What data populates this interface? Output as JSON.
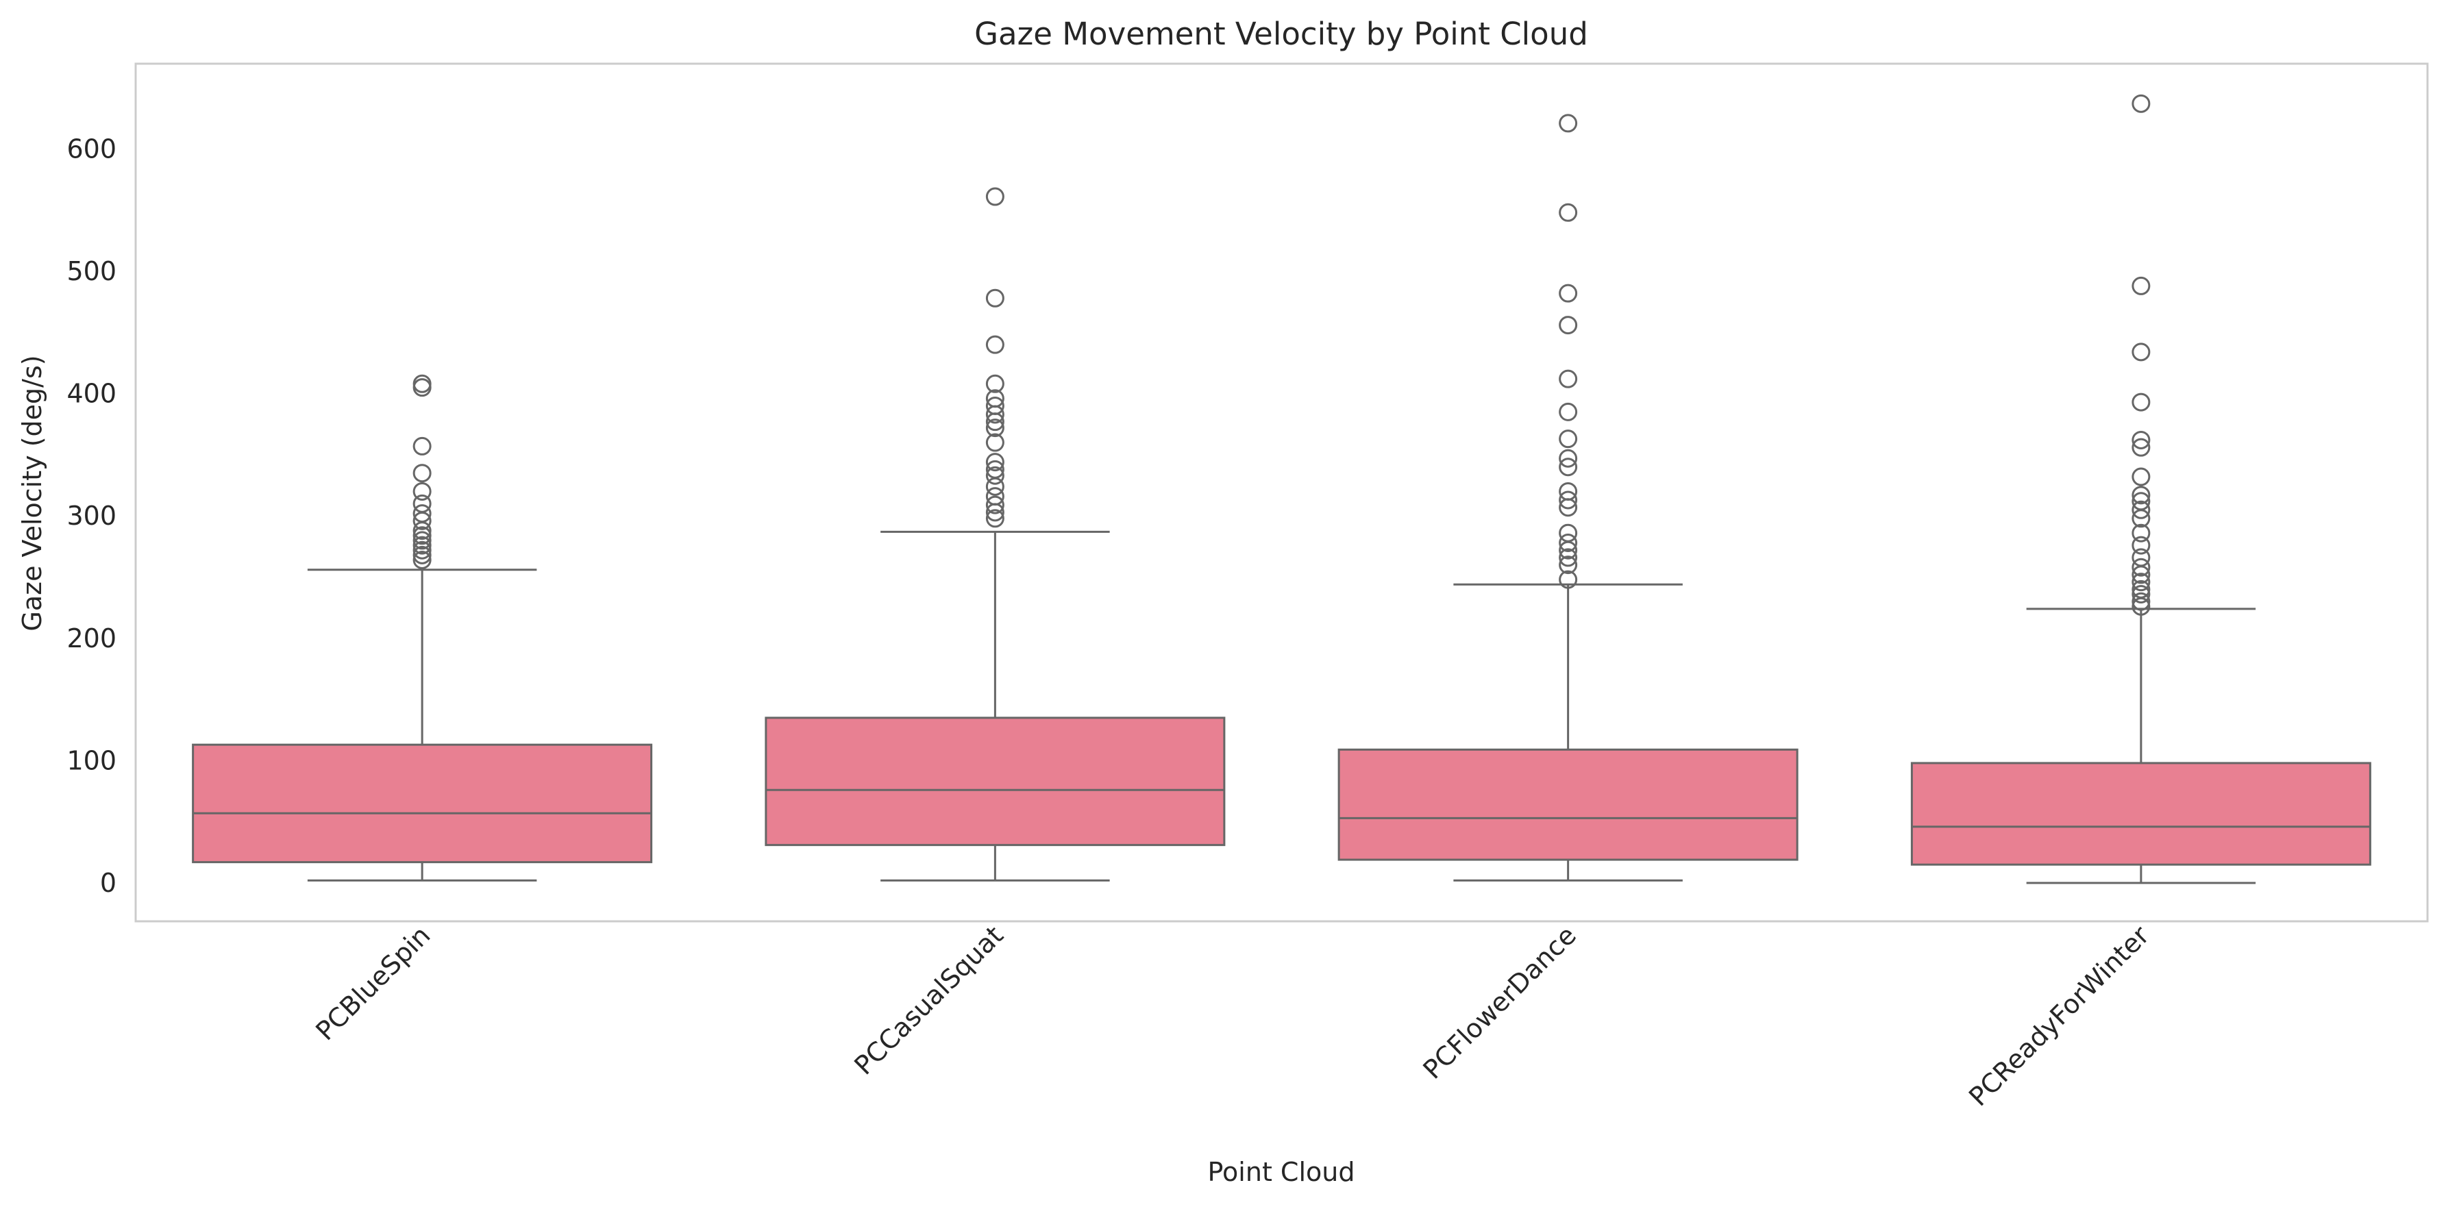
{
  "chart_data": {
    "type": "box",
    "title": "Gaze Movement Velocity by Point Cloud",
    "xlabel": "Point Cloud",
    "ylabel": "Gaze Velocity (deg/s)",
    "ylim": [
      -30,
      665
    ],
    "yticks": [
      0,
      100,
      200,
      300,
      400,
      500,
      600
    ],
    "grid": false,
    "box_color": "#e88092",
    "line_color": "#666666",
    "categories": [
      "PCBlueSpin",
      "PCCasualSquat",
      "PCFlowerDance",
      "PCReadyForWinter"
    ],
    "boxes": [
      {
        "label": "PCBlueSpin",
        "whisker_low": 2,
        "q1": 17,
        "median": 57,
        "q3": 113,
        "whisker_high": 256,
        "outliers": [
          264,
          268,
          272,
          276,
          280,
          284,
          288,
          296,
          302,
          310,
          320,
          335,
          357,
          405,
          408
        ]
      },
      {
        "label": "PCCasualSquat",
        "whisker_low": 2,
        "q1": 31,
        "median": 76,
        "q3": 135,
        "whisker_high": 287,
        "outliers": [
          298,
          303,
          309,
          316,
          324,
          333,
          338,
          344,
          360,
          372,
          377,
          383,
          390,
          396,
          408,
          440,
          478,
          561
        ]
      },
      {
        "label": "PCFlowerDance",
        "whisker_low": 2,
        "q1": 19,
        "median": 53,
        "q3": 109,
        "whisker_high": 244,
        "outliers": [
          248,
          260,
          266,
          272,
          278,
          286,
          307,
          313,
          320,
          340,
          347,
          363,
          385,
          412,
          456,
          482,
          548,
          621
        ]
      },
      {
        "label": "PCReadyForWinter",
        "whisker_low": 0,
        "q1": 15,
        "median": 46,
        "q3": 98,
        "whisker_high": 224,
        "outliers": [
          226,
          230,
          236,
          240,
          246,
          252,
          258,
          266,
          276,
          286,
          298,
          305,
          312,
          317,
          332,
          356,
          362,
          393,
          434,
          488,
          637
        ]
      }
    ]
  }
}
